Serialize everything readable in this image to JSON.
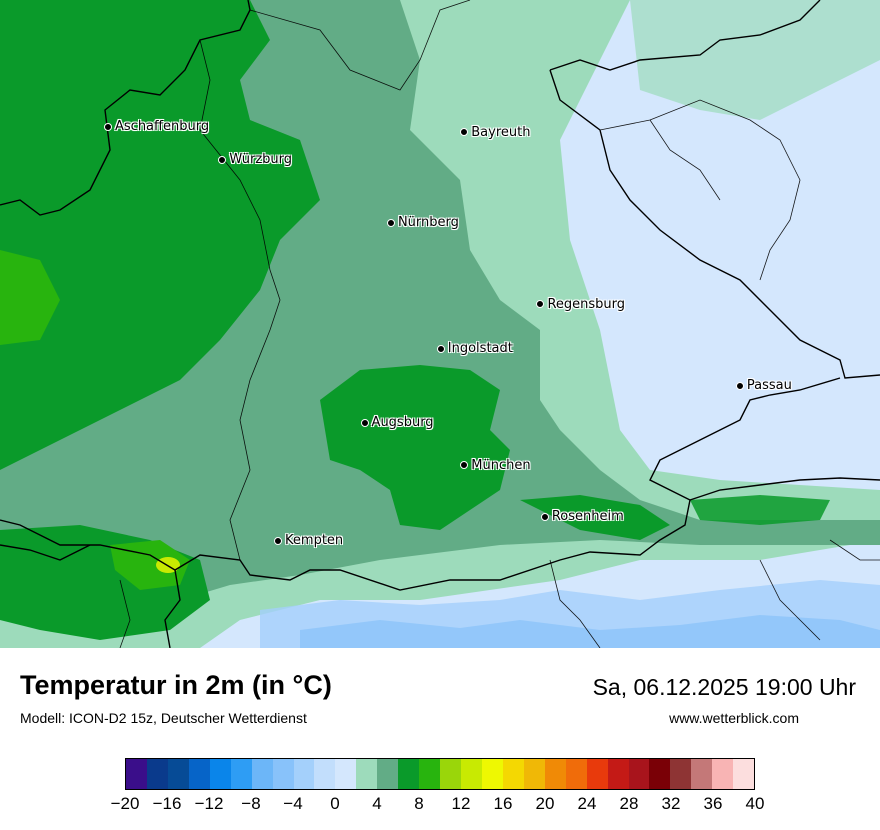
{
  "map": {
    "cities": [
      {
        "name": "Aschaffenburg",
        "lon": 9.15,
        "lat": 49.97
      },
      {
        "name": "Würzburg",
        "lon": 9.93,
        "lat": 49.79
      },
      {
        "name": "Bayreuth",
        "lon": 11.58,
        "lat": 49.94
      },
      {
        "name": "Nürnberg",
        "lon": 11.08,
        "lat": 49.45
      },
      {
        "name": "Regensburg",
        "lon": 12.1,
        "lat": 49.01
      },
      {
        "name": "Ingolstadt",
        "lon": 11.42,
        "lat": 48.77
      },
      {
        "name": "Passau",
        "lon": 13.46,
        "lat": 48.57
      },
      {
        "name": "Augsburg",
        "lon": 10.9,
        "lat": 48.37
      },
      {
        "name": "München",
        "lon": 11.58,
        "lat": 48.14
      },
      {
        "name": "Rosenheim",
        "lon": 12.13,
        "lat": 47.86
      },
      {
        "name": "Kempten",
        "lon": 10.31,
        "lat": 47.73
      }
    ]
  },
  "footer": {
    "title": "Temperatur in 2m (in °C)",
    "subtitle": "Modell: ICON-D2 15z, Deutscher Wetterdienst",
    "datetime": "Sa, 06.12.2025 19:00 Uhr",
    "website": "www.wetterblick.com"
  },
  "legend": {
    "unit": "°C",
    "min": -20,
    "max": 40,
    "step": 2,
    "tick_labels": [
      "−20",
      "−16",
      "−12",
      "−8",
      "−4",
      "0",
      "4",
      "8",
      "12",
      "16",
      "20",
      "24",
      "28",
      "32",
      "36",
      "40"
    ],
    "colors": [
      "#3a0e8a",
      "#0a3a8c",
      "#064b96",
      "#0664c8",
      "#0a85ea",
      "#2e9df4",
      "#6cb6f8",
      "#88c2fa",
      "#a4d0fb",
      "#c2defc",
      "#d4e7fd",
      "#9ddbbb",
      "#62ac86",
      "#0a9a2a",
      "#28b40e",
      "#9ad60a",
      "#c8ea02",
      "#eef802",
      "#f4d802",
      "#f0b806",
      "#f08a06",
      "#f06c0a",
      "#e83a0c",
      "#c41a16",
      "#a8141c",
      "#7a0006",
      "#8e3434",
      "#c47878",
      "#f8b4b4",
      "#fcdede"
    ]
  }
}
